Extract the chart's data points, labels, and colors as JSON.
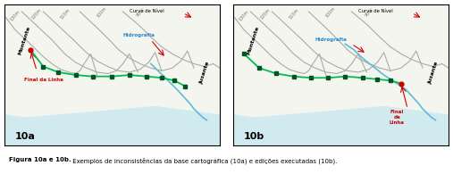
{
  "fig_width": 5.07,
  "fig_height": 2.05,
  "dpi": 100,
  "bg_color": "#ffffff",
  "panel_bg": "#f5f5f0",
  "border_color": "#000000",
  "caption_bold": "Figura 10a e 10b.",
  "caption_normal": " Exemplos de inconsistências da base cartográfica (10a) e edições executadas (10b).",
  "label_10a": "10a",
  "label_10b": "10b",
  "contour_color": "#aaaaaa",
  "river_fill": "#c8e8f0",
  "hydro_line_color": "#5abcd8",
  "green_line_color": "#00bb55",
  "green_dot_color": "#005522",
  "red_color": "#cc0000",
  "blue_label": "#2288cc",
  "montante_label": "Montante",
  "jusante_label": "Jusante",
  "curva_label": "Curva de Nível",
  "hidro_label": "Hidrografia",
  "final_label_a": "Final da Linha",
  "final_label_b": "Final\nda\nLinha"
}
